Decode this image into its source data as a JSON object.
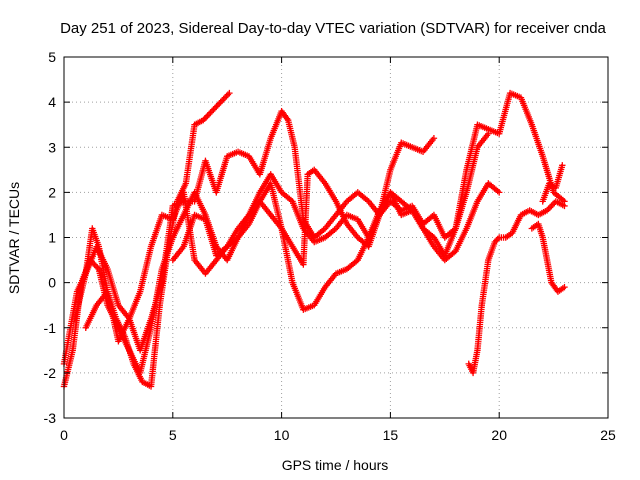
{
  "chart_data": {
    "type": "scatter",
    "title": "Day 251 of 2023, Sidereal Day-to-day VTEC variation (SDTVAR) for receiver cnda",
    "xlabel": "GPS time / hours",
    "ylabel": "SDTVAR / TECUs",
    "xlim": [
      0,
      25
    ],
    "ylim": [
      -3,
      5
    ],
    "xticks": [
      "0",
      "5",
      "10",
      "15",
      "20",
      "25"
    ],
    "yticks": [
      "-3",
      "-2",
      "-1",
      "0",
      "1",
      "2",
      "3",
      "4",
      "5"
    ],
    "grid": true,
    "marker": "plus",
    "color": "#ff0000",
    "series": [
      {
        "x": [
          0,
          0.3,
          0.6,
          1,
          1.3,
          1.6,
          2,
          2.4,
          2.8,
          3.2,
          3.6,
          4,
          4.4,
          4.8,
          5.2,
          5.6,
          6,
          6.4,
          6.8,
          7.2,
          7.6
        ],
        "y": [
          -1.8,
          -1,
          -0.2,
          0.2,
          1.2,
          0.8,
          -0.2,
          -0.8,
          -1.2,
          -1.8,
          -2.2,
          -2.3,
          -0.5,
          0.8,
          1.8,
          2.2,
          3.5,
          3.6,
          3.8,
          4,
          4.2
        ]
      },
      {
        "x": [
          0,
          0.4,
          0.8,
          1.2,
          1.6,
          2,
          2.5,
          3,
          3.5,
          4,
          4.5,
          5,
          5.5,
          6,
          6.5,
          7,
          7.5,
          8,
          8.5,
          9,
          9.5,
          10,
          10.5,
          11,
          11.5,
          12,
          12.5,
          13,
          13.5,
          14,
          14.5,
          15,
          15.5,
          16,
          16.5,
          17,
          17.5,
          18,
          18.5,
          19,
          19.5,
          20
        ],
        "y": [
          -2.3,
          -1.5,
          0,
          0.5,
          0.3,
          -0.5,
          -1,
          -1.5,
          -2,
          -1,
          0.3,
          1,
          1.5,
          2,
          1.5,
          0.8,
          0.5,
          1,
          1.5,
          2,
          2.4,
          2,
          1.8,
          1.2,
          0.9,
          1,
          1.2,
          1.5,
          1.4,
          1,
          1.6,
          2,
          1.5,
          1.6,
          1.2,
          0.8,
          0.5,
          0.7,
          1.2,
          1.8,
          2.2,
          2
        ]
      },
      {
        "x": [
          0.5,
          1,
          1.5,
          2,
          2.5,
          3,
          3.5,
          4,
          4.5,
          5,
          5.5,
          6,
          6.5,
          7,
          7.5,
          8,
          8.5,
          9,
          9.5,
          10,
          10.3,
          10.6,
          11,
          11.5,
          12,
          12.5,
          13,
          13.5,
          14,
          14.5,
          15,
          15.5,
          16,
          16.5,
          17
        ],
        "y": [
          -0.8,
          0.2,
          0.8,
          0.3,
          -0.5,
          -0.8,
          -1.5,
          -0.8,
          0,
          1.7,
          1.8,
          1.8,
          2.7,
          2,
          2.8,
          2.9,
          2.8,
          2.4,
          3.2,
          3.8,
          3.6,
          3,
          1.4,
          1,
          1.2,
          1.5,
          1.8,
          2,
          1.8,
          1.5,
          2.5,
          3.1,
          3,
          2.9,
          3.2
        ]
      },
      {
        "x": [
          1,
          1.5,
          2,
          2.5,
          3,
          3.5,
          4,
          4.5,
          5,
          5.5,
          6,
          6.5,
          7,
          7.5,
          8,
          8.5,
          9,
          9.5,
          10,
          10.5,
          11,
          11.2,
          11.5,
          12,
          12.5,
          13,
          13.5,
          14,
          14.5,
          15,
          15.5,
          16,
          16.5,
          17,
          17.5,
          18,
          18.5,
          19,
          19.5,
          20,
          20.5,
          21,
          21.5,
          22,
          22.5,
          23
        ],
        "y": [
          -1,
          -0.5,
          -0.2,
          -1.3,
          -0.8,
          -0.2,
          0.8,
          1.5,
          1.4,
          2,
          0.5,
          0.2,
          0.5,
          0.8,
          1.2,
          1.5,
          1.8,
          1.5,
          1.2,
          0.8,
          0.4,
          2.4,
          2.5,
          2.2,
          1.8,
          1.3,
          1,
          0.8,
          1.5,
          2,
          1.8,
          1.6,
          1.2,
          1,
          0.6,
          1.2,
          2.5,
          3.5,
          3.4,
          3.3,
          4.2,
          4.1,
          3.5,
          2.8,
          2,
          1.8
        ]
      },
      {
        "x": [
          5,
          5.5,
          6,
          6.5,
          7,
          7.5,
          8,
          8.5,
          9,
          9.5,
          10,
          10.5,
          11,
          11.5,
          12,
          12.5,
          13,
          13.5,
          14,
          14.5,
          15,
          15.5,
          16,
          16.5,
          17,
          17.5,
          18,
          18.5,
          19,
          19.5
        ],
        "y": [
          0.5,
          0.8,
          1.5,
          1.4,
          0.6,
          0.8,
          1,
          1.3,
          1.8,
          2.2,
          1.2,
          0,
          -0.6,
          -0.5,
          -0.1,
          0.2,
          0.3,
          0.5,
          1,
          1.5,
          1.8,
          1.6,
          1.7,
          1.3,
          1.5,
          1,
          1.2,
          2,
          3,
          3.3
        ]
      },
      {
        "x": [
          18.6,
          18.8,
          19,
          19.2,
          19.5,
          19.8,
          20,
          20.3,
          20.6,
          21,
          21.4,
          21.8,
          22.2,
          22.6,
          23
        ],
        "y": [
          -1.8,
          -2,
          -1.5,
          -0.5,
          0.5,
          0.9,
          1,
          1,
          1.1,
          1.5,
          1.6,
          1.5,
          1.6,
          1.8,
          1.7
        ]
      },
      {
        "x": [
          21.5,
          21.8,
          22,
          22.2,
          22.4,
          22.7,
          23
        ],
        "y": [
          1.2,
          1.3,
          1,
          0.5,
          0,
          -0.2,
          -0.1
        ]
      },
      {
        "x": [
          22,
          22.3,
          22.6,
          22.9
        ],
        "y": [
          1.8,
          2.2,
          2.1,
          2.6
        ]
      }
    ]
  }
}
